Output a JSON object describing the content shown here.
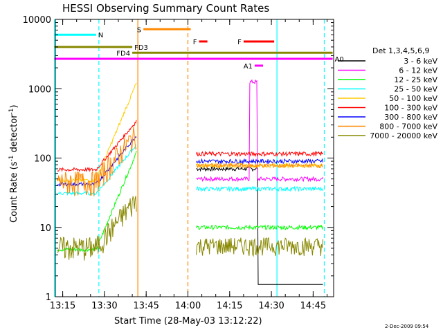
{
  "chart_data": {
    "type": "line",
    "title": "HESSI Observing Summary Count Rates",
    "xlabel": "Start Time (28-May-03 13:12:22)",
    "ylabel_main": "Count Rate (s",
    "ylabel_exp1": "-1",
    "ylabel_mid": " detector",
    "ylabel_exp2": "-1",
    "ylabel_end": ")",
    "y_scale": "log",
    "ylim": [
      1,
      10000
    ],
    "xlim": [
      "13:12:22",
      "14:52:22"
    ],
    "x_ticks": [
      "13:15",
      "13:30",
      "13:45",
      "14:00",
      "14:15",
      "14:30",
      "14:45"
    ],
    "y_ticks": [
      "1",
      "10",
      "100",
      "1000",
      "10000"
    ],
    "legend_title": "Det 1,3,4,5,6,9",
    "legend_position": "right",
    "series": [
      {
        "name": "3 - 6 keV",
        "color": "#000000"
      },
      {
        "name": "6 - 12 keV",
        "color": "#ff00ff"
      },
      {
        "name": "12 - 25 keV",
        "color": "#00ff00"
      },
      {
        "name": "25 - 50 keV",
        "color": "#00ffff"
      },
      {
        "name": "50 - 100 keV",
        "color": "#ffcc00"
      },
      {
        "name": "100 - 300 keV",
        "color": "#ff0000"
      },
      {
        "name": "300 - 800 keV",
        "color": "#0000ff"
      },
      {
        "name": "800 - 7000 keV",
        "color": "#ff8800"
      },
      {
        "name": "7000 - 20000 keV",
        "color": "#888800"
      }
    ],
    "flag_bars": [
      {
        "label": "N",
        "color": "#00ffff",
        "start": "13:12",
        "end": "13:27",
        "y": 6000
      },
      {
        "label": "S",
        "color": "#ff8800",
        "start": "13:44",
        "end": "14:01",
        "y": 7200
      },
      {
        "label": "F",
        "color": "#ff0000",
        "start": "14:04",
        "end": "14:07",
        "y": 4800
      },
      {
        "label": "F",
        "color": "#ff0000",
        "start": "14:20",
        "end": "14:31",
        "y": 4800
      },
      {
        "label": "FD3",
        "color": "#888800",
        "start": "13:12",
        "end": "13:40",
        "y": 4000
      },
      {
        "label": "FD4",
        "color": "#888800",
        "start": "13:40",
        "end": "14:52",
        "y": 3300
      },
      {
        "label": "A0",
        "color": "#ff00ff",
        "start": "13:12",
        "end": "14:52",
        "y": 2700
      },
      {
        "label": "A1",
        "color": "#ff00ff",
        "start": "14:24",
        "end": "14:27",
        "y": 2150
      }
    ],
    "vertical_lines": [
      {
        "time": "13:12",
        "color": "#00ffff",
        "style": "solid"
      },
      {
        "time": "13:28",
        "color": "#00ffff",
        "style": "dashed"
      },
      {
        "time": "13:42",
        "color": "#ff8800",
        "style": "solid"
      },
      {
        "time": "14:00",
        "color": "#ff8800",
        "style": "dashed"
      },
      {
        "time": "14:32",
        "color": "#00ffff",
        "style": "solid"
      },
      {
        "time": "14:49",
        "color": "#00ffff",
        "style": "dashed"
      }
    ],
    "timestamp": "2-Dec-2009 09:54"
  }
}
